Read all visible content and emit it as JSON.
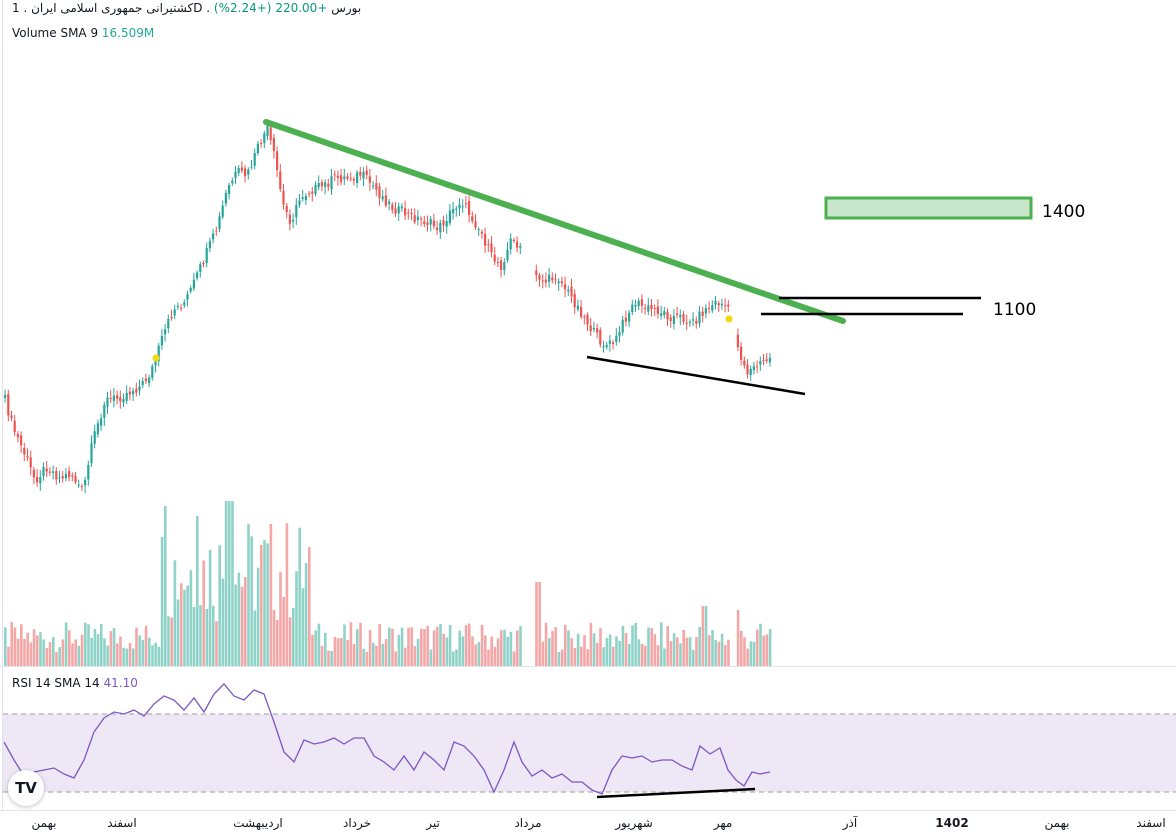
{
  "header": {
    "symbol": "کشتیرانی جمهوری اسلامی ایران",
    "interval": "1D",
    "exchange": "بورس",
    "change": "+220.00",
    "change_pct": "(+2.24%)",
    "volume_label": "Volume SMA 9",
    "volume_value": "16.509M",
    "rsi_label": "RSI 14 SMA 14",
    "rsi_value": "41.10"
  },
  "chart_data": {
    "type": "candlestick",
    "x_tick_labels": [
      "بهمن",
      "اسفند",
      "اردیبهشت",
      "خرداد",
      "تیر",
      "مرداد",
      "شهریور",
      "مهر",
      "آذر",
      "1402",
      "بهمن",
      "اسفند"
    ],
    "annotations": [
      "1400",
      "1100"
    ],
    "colors": {
      "up": "#26a69a",
      "down": "#ef5350",
      "volume_up": "#8fd3c8",
      "volume_down": "#f4a7a6",
      "trendline": "#4caf50",
      "rsi": "#7e57c2"
    }
  }
}
